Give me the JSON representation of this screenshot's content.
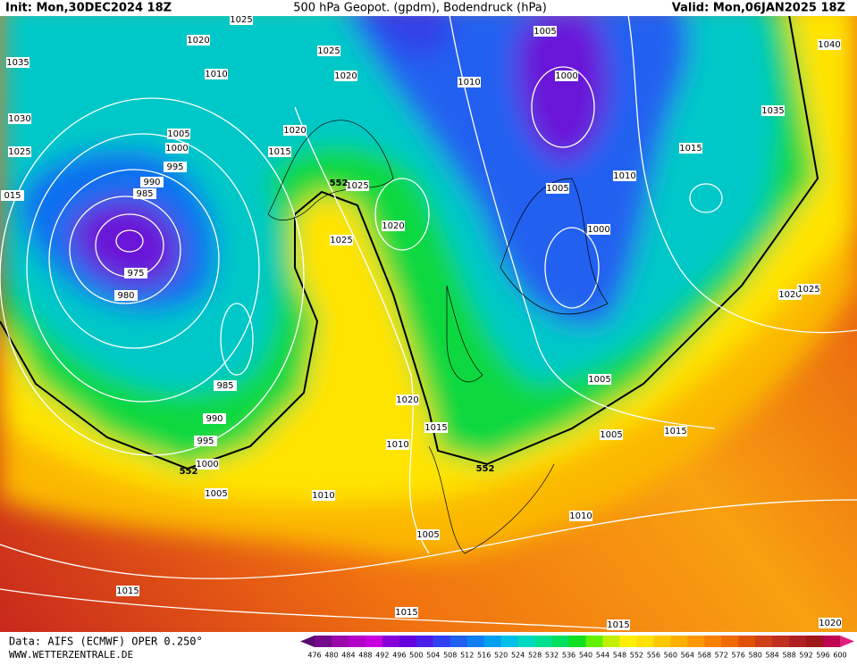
{
  "header": {
    "init": "Init: Mon,30DEC2024 18Z",
    "title": "500 hPa Geopot. (gpdm), Bodendruck (hPa)",
    "valid": "Valid: Mon,06JAN2025 18Z"
  },
  "footer": {
    "data": "Data: AIFS (ECMWF) OPER 0.250°",
    "site": "WWW.WETTERZENTRALE.DE"
  },
  "scale": {
    "labels": [
      476,
      480,
      484,
      488,
      492,
      496,
      500,
      504,
      508,
      512,
      516,
      520,
      524,
      528,
      532,
      536,
      540,
      544,
      548,
      552,
      556,
      560,
      564,
      568,
      572,
      576,
      580,
      584,
      588,
      592,
      596,
      600
    ]
  },
  "map": {
    "isobar_labels": [
      "1025",
      "1020",
      "1025",
      "1035",
      "1010",
      "1020",
      "1010",
      "1000",
      "1005",
      "1040",
      "1030",
      "1035",
      "1005",
      "1020",
      "1000",
      "1015",
      "1015",
      "1025",
      "995",
      "1010",
      "990",
      "985",
      "1005",
      "1025",
      "015",
      "1020",
      "1000",
      "1025",
      "975",
      "980",
      "1020",
      "1025",
      "985",
      "1005",
      "1020",
      "990",
      "1015",
      "1015",
      "995",
      "1010",
      "1005",
      "1000",
      "1005",
      "1010",
      "1010",
      "1005",
      "1015",
      "1015",
      "1015",
      "1020"
    ],
    "contour_labels": [
      "552",
      "552",
      "552"
    ]
  }
}
